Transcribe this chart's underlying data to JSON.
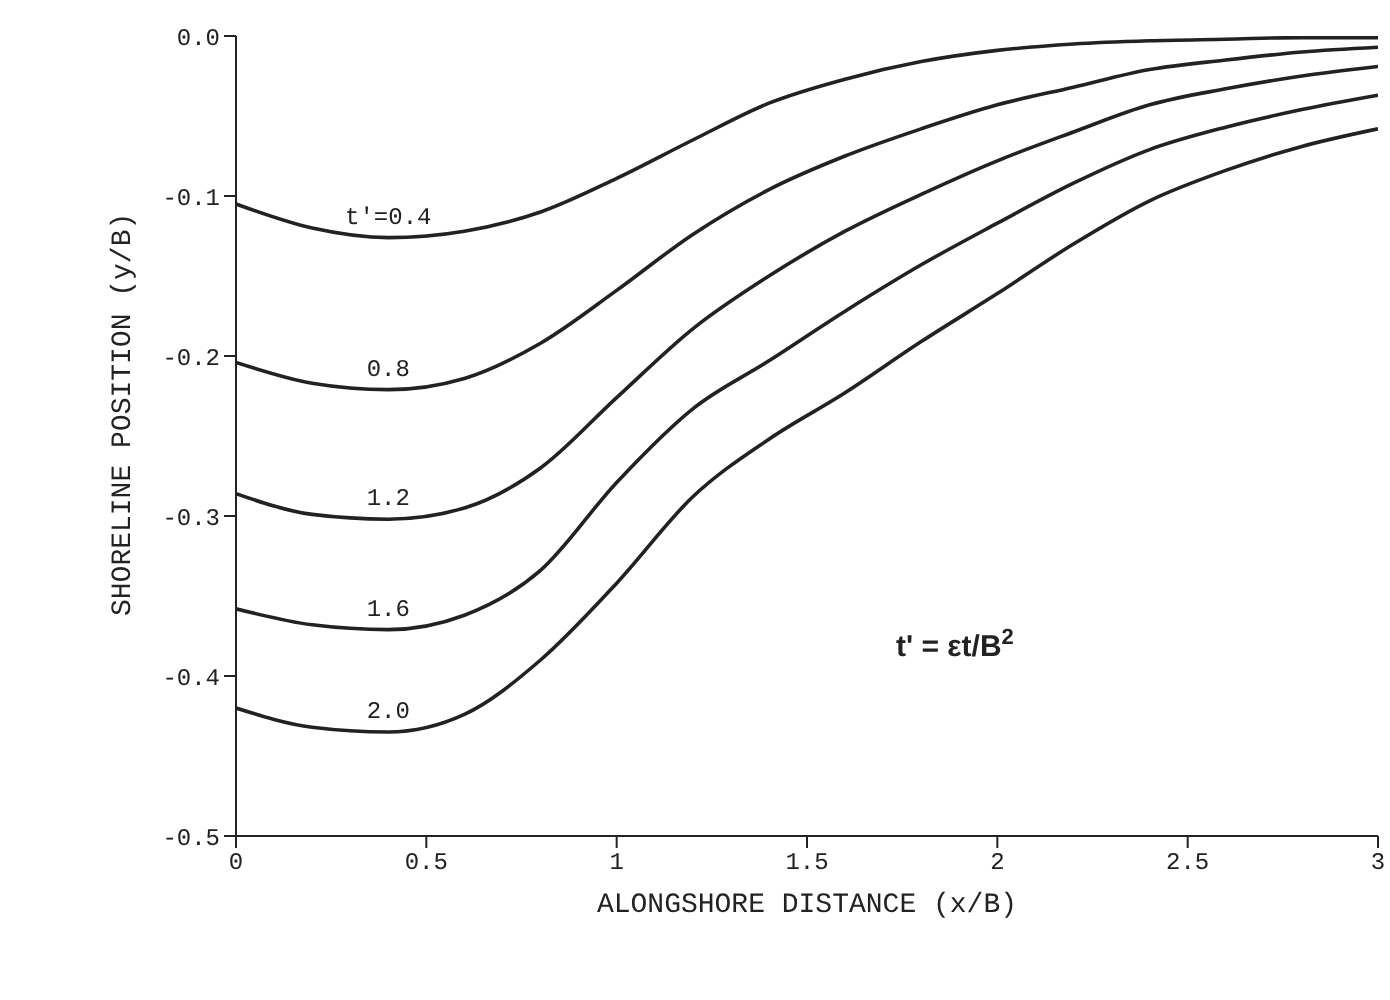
{
  "chart_data": {
    "type": "line",
    "xlabel": "ALONGSHORE DISTANCE (x/B)",
    "ylabel": "SHORELINE POSITION (y/B)",
    "x": [
      0,
      0.2,
      0.4,
      0.6,
      0.8,
      1.0,
      1.2,
      1.4,
      1.6,
      1.8,
      2.0,
      2.2,
      2.4,
      2.6,
      2.8,
      3.0
    ],
    "series": [
      {
        "name": "t'=0.4",
        "color": "#222222",
        "values": [
          -0.105,
          -0.12,
          -0.126,
          -0.122,
          -0.11,
          -0.089,
          -0.065,
          -0.042,
          -0.027,
          -0.016,
          -0.009,
          -0.005,
          -0.003,
          -0.002,
          -0.001,
          -0.001
        ]
      },
      {
        "name": "0.8",
        "color": "#222222",
        "values": [
          -0.204,
          -0.217,
          -0.221,
          -0.214,
          -0.192,
          -0.159,
          -0.124,
          -0.096,
          -0.075,
          -0.058,
          -0.043,
          -0.032,
          -0.021,
          -0.015,
          -0.01,
          -0.007
        ]
      },
      {
        "name": "1.2",
        "color": "#222222",
        "values": [
          -0.286,
          -0.299,
          -0.302,
          -0.295,
          -0.27,
          -0.226,
          -0.183,
          -0.15,
          -0.122,
          -0.099,
          -0.078,
          -0.06,
          -0.043,
          -0.033,
          -0.025,
          -0.019
        ]
      },
      {
        "name": "1.6",
        "color": "#222222",
        "values": [
          -0.358,
          -0.368,
          -0.371,
          -0.362,
          -0.334,
          -0.279,
          -0.233,
          -0.203,
          -0.172,
          -0.143,
          -0.117,
          -0.092,
          -0.071,
          -0.057,
          -0.046,
          -0.037
        ]
      },
      {
        "name": "2.0",
        "color": "#222222",
        "values": [
          -0.42,
          -0.432,
          -0.435,
          -0.424,
          -0.39,
          -0.342,
          -0.288,
          -0.252,
          -0.223,
          -0.191,
          -0.161,
          -0.13,
          -0.103,
          -0.084,
          -0.069,
          -0.058
        ]
      }
    ],
    "xlim": [
      0,
      3
    ],
    "xticks": [
      0,
      0.5,
      1,
      1.5,
      2,
      2.5,
      3
    ],
    "ylim": [
      -0.5,
      0
    ],
    "yticks": [
      {
        "value": -0.5,
        "label": "-0.5"
      },
      {
        "value": -0.4,
        "label": "-0.4"
      },
      {
        "value": -0.3,
        "label": "-0.3"
      },
      {
        "value": -0.2,
        "label": "-0.2"
      },
      {
        "value": -0.1,
        "label": "-0.1"
      },
      {
        "value": 0,
        "label": "0.0"
      }
    ],
    "annotations": [
      "t' = εt/B$^{2}$"
    ],
    "grid": false,
    "legend": false,
    "marker": "none",
    "line_style": "solid"
  }
}
